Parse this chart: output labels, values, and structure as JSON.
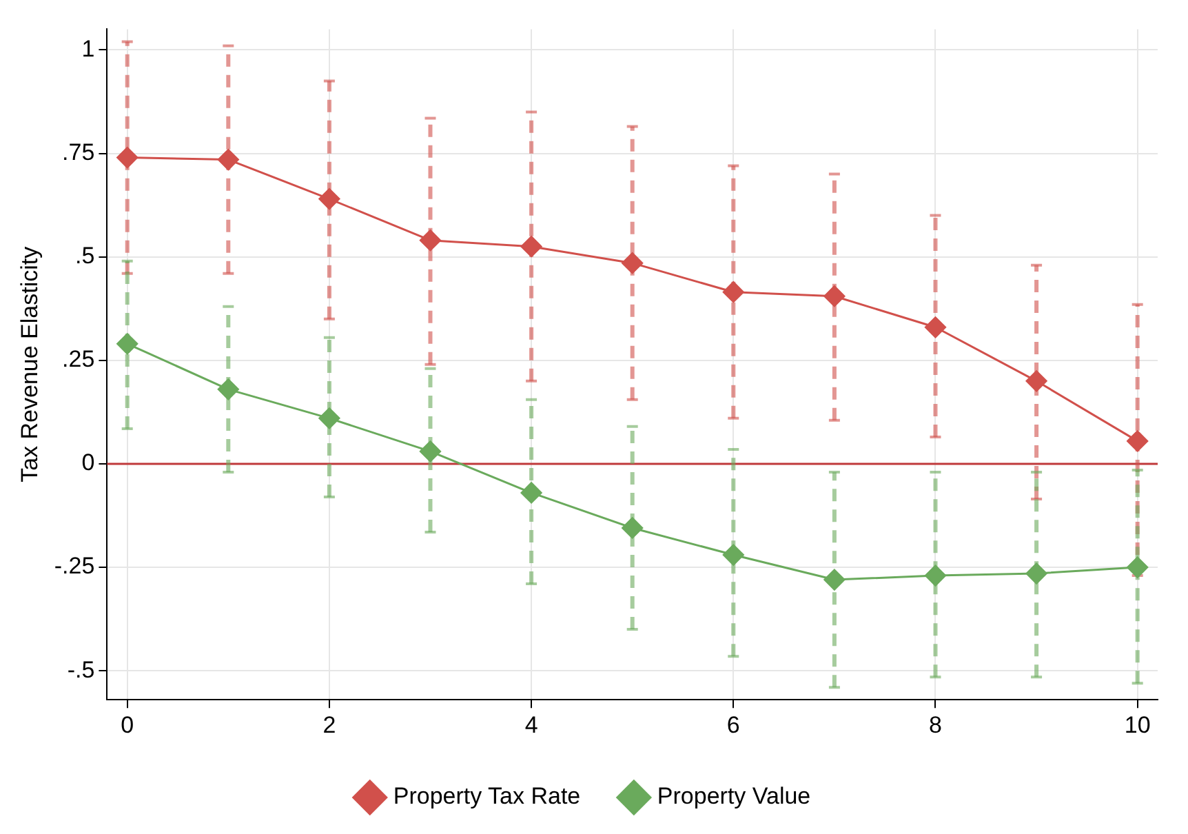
{
  "chart_data": {
    "type": "line",
    "ylabel": "Tax Revenue Elasticity",
    "x": [
      0,
      1,
      2,
      3,
      4,
      5,
      6,
      7,
      8,
      9,
      10
    ],
    "series": [
      {
        "name": "Property Tax Rate",
        "color": "#d1504b",
        "values": [
          0.74,
          0.735,
          0.64,
          0.54,
          0.525,
          0.485,
          0.415,
          0.405,
          0.33,
          0.2,
          0.055
        ],
        "errors": [
          [
            0.46,
            1.02
          ],
          [
            0.46,
            1.01
          ],
          [
            0.35,
            0.925
          ],
          [
            0.24,
            0.835
          ],
          [
            0.2,
            0.85
          ],
          [
            0.155,
            0.815
          ],
          [
            0.11,
            0.72
          ],
          [
            0.105,
            0.7
          ],
          [
            0.065,
            0.6
          ],
          [
            -0.085,
            0.48
          ],
          [
            -0.27,
            0.385
          ]
        ]
      },
      {
        "name": "Property Value",
        "color": "#6aaa5c",
        "values": [
          0.29,
          0.18,
          0.11,
          0.03,
          -0.07,
          -0.155,
          -0.22,
          -0.28,
          -0.27,
          -0.265,
          -0.25
        ],
        "errors": [
          [
            0.085,
            0.49
          ],
          [
            -0.02,
            0.38
          ],
          [
            -0.08,
            0.305
          ],
          [
            -0.165,
            0.23
          ],
          [
            -0.29,
            0.155
          ],
          [
            -0.4,
            0.09
          ],
          [
            -0.465,
            0.035
          ],
          [
            -0.54,
            -0.02
          ],
          [
            -0.515,
            -0.02
          ],
          [
            -0.515,
            -0.02
          ],
          [
            -0.53,
            -0.015
          ]
        ]
      }
    ],
    "xlim": [
      -0.2,
      10.2
    ],
    "xticks": [
      0,
      2,
      4,
      6,
      8,
      10
    ],
    "ylim": [
      -0.57,
      1.05
    ],
    "yticks": [
      {
        "value": -0.5,
        "label": "-.5"
      },
      {
        "value": -0.25,
        "label": "-.25"
      },
      0,
      {
        "value": 0.25,
        "label": ".25"
      },
      {
        "value": 0.5,
        "label": ".5"
      },
      {
        "value": 0.75,
        "label": ".75"
      },
      1
    ],
    "ref_lines": [
      {
        "axis": "y",
        "value": 0,
        "color": "#c0393b"
      }
    ],
    "grid": true,
    "legend": "bottom",
    "marker": "diamond",
    "line_style": "solid"
  }
}
